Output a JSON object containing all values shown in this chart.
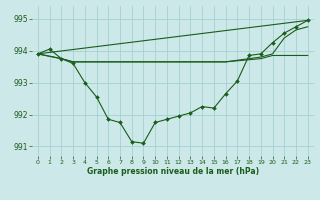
{
  "title": "Graphe pression niveau de la mer (hPa)",
  "bg_color": "#cce8e8",
  "grid_color": "#9ecece",
  "line_color": "#1a5c1a",
  "xlim": [
    -0.5,
    23.5
  ],
  "ylim": [
    990.7,
    995.4
  ],
  "yticks": [
    991,
    992,
    993,
    994,
    995
  ],
  "xticks": [
    0,
    1,
    2,
    3,
    4,
    5,
    6,
    7,
    8,
    9,
    10,
    11,
    12,
    13,
    14,
    15,
    16,
    17,
    18,
    19,
    20,
    21,
    22,
    23
  ],
  "line_main": {
    "x": [
      0,
      1,
      2,
      3,
      4,
      5,
      6,
      7,
      8,
      9,
      10,
      11,
      12,
      13,
      14,
      15,
      16,
      17,
      18,
      19,
      20,
      21,
      22,
      23
    ],
    "y": [
      993.9,
      994.05,
      993.75,
      993.6,
      993.0,
      992.55,
      991.85,
      991.75,
      991.15,
      991.1,
      991.75,
      991.85,
      991.95,
      992.05,
      992.25,
      992.2,
      992.65,
      993.05,
      993.85,
      993.9,
      994.25,
      994.55,
      994.75,
      994.95
    ]
  },
  "line_diag": {
    "x": [
      0,
      23
    ],
    "y": [
      993.9,
      994.95
    ]
  },
  "line_flat1": {
    "x": [
      0,
      2,
      3,
      10,
      16,
      19,
      20,
      21,
      22,
      23
    ],
    "y": [
      993.9,
      993.75,
      993.65,
      993.65,
      993.65,
      993.8,
      993.9,
      994.4,
      994.65,
      994.75
    ]
  },
  "line_flat2": {
    "x": [
      0,
      2,
      3,
      10,
      16,
      19,
      20,
      23
    ],
    "y": [
      993.9,
      993.75,
      993.65,
      993.65,
      993.65,
      993.75,
      993.85,
      993.85
    ]
  }
}
